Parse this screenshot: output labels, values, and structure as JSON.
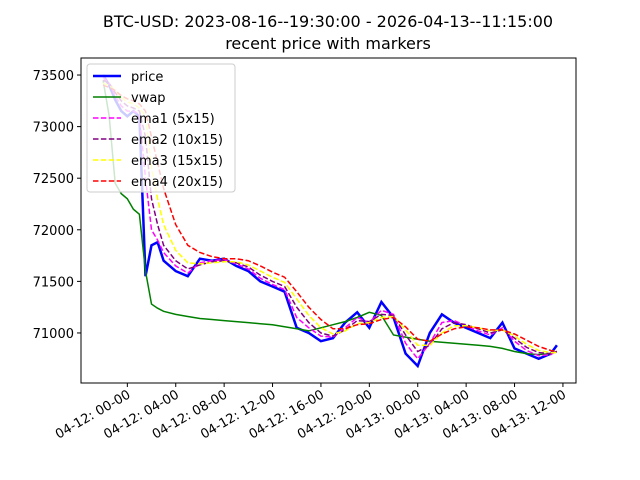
{
  "chart_data": {
    "type": "line",
    "title": "BTC-USD: 2023-08-16--19:30:00 - 2026-04-13--11:15:00",
    "subtitle": "recent price with markers",
    "x": [
      -2,
      -1.5,
      -1,
      -0.5,
      0,
      0.5,
      1,
      1.5,
      2,
      2.5,
      3,
      4,
      5,
      6,
      7,
      8,
      9,
      10,
      11,
      12,
      13,
      14,
      15,
      16,
      17,
      18,
      19,
      20,
      21,
      22,
      23,
      24,
      25,
      26,
      27,
      28,
      29,
      30,
      31,
      32,
      33,
      34,
      35,
      35.5
    ],
    "xlim": [
      -3.83,
      37.08
    ],
    "xticks": [
      {
        "value": 0,
        "label": "04-12: 00-00"
      },
      {
        "value": 4,
        "label": "04-12: 04-00"
      },
      {
        "value": 8,
        "label": "04-12: 08-00"
      },
      {
        "value": 12,
        "label": "04-12: 12-00"
      },
      {
        "value": 16,
        "label": "04-12: 16-00"
      },
      {
        "value": 20,
        "label": "04-12: 20-00"
      },
      {
        "value": 24,
        "label": "04-13: 00-00"
      },
      {
        "value": 28,
        "label": "04-13: 04-00"
      },
      {
        "value": 32,
        "label": "04-13: 08-00"
      },
      {
        "value": 36,
        "label": "04-13: 12-00"
      }
    ],
    "ylim": [
      70515,
      73665
    ],
    "yticks": [
      71000,
      71500,
      72000,
      72500,
      73000,
      73500
    ],
    "legend": "upper left",
    "series": [
      {
        "name": "price",
        "color": "#0000ff",
        "linewidth": 2.5,
        "style": "solid",
        "values": [
          73500,
          73400,
          73260,
          73150,
          73100,
          73150,
          73100,
          71550,
          71850,
          71880,
          71700,
          71600,
          71550,
          71720,
          71700,
          71720,
          71650,
          71600,
          71500,
          71450,
          71400,
          71050,
          71000,
          70920,
          70950,
          71100,
          71200,
          71050,
          71300,
          71150,
          70800,
          70680,
          71000,
          71180,
          71100,
          71050,
          71000,
          70950,
          71100,
          70850,
          70800,
          70750,
          70800,
          70880
        ]
      },
      {
        "name": "vwap",
        "color": "#008000",
        "linewidth": 1.5,
        "style": "solid",
        "values": [
          73450,
          73100,
          72450,
          72350,
          72300,
          72200,
          72150,
          71600,
          71280,
          71240,
          71210,
          71180,
          71160,
          71140,
          71130,
          71120,
          71110,
          71100,
          71090,
          71080,
          71060,
          71040,
          71020,
          71050,
          71080,
          71110,
          71150,
          71200,
          71170,
          70980,
          70960,
          70940,
          70920,
          70910,
          70900,
          70890,
          70880,
          70870,
          70850,
          70820,
          70800,
          70790,
          70800,
          70820
        ]
      },
      {
        "name": "ema1 (5x15)",
        "color": "#ff00ff",
        "linewidth": 1.5,
        "style": "dashed",
        "values": [
          73480,
          73420,
          73300,
          73200,
          73150,
          73150,
          73120,
          72500,
          72000,
          71900,
          71780,
          71650,
          71580,
          71680,
          71700,
          71710,
          71670,
          71620,
          71530,
          71470,
          71420,
          71150,
          71050,
          70970,
          70960,
          71050,
          71150,
          71100,
          71220,
          71180,
          70900,
          70750,
          70900,
          71100,
          71120,
          71070,
          71020,
          70980,
          71050,
          70920,
          70830,
          70780,
          70790,
          70830
        ]
      },
      {
        "name": "ema2 (10x15)",
        "color": "#800080",
        "linewidth": 1.5,
        "style": "dashed",
        "values": [
          73450,
          73420,
          73330,
          73250,
          73200,
          73180,
          73150,
          72900,
          72300,
          72050,
          71850,
          71700,
          71620,
          71660,
          71690,
          71700,
          71680,
          71640,
          71560,
          71500,
          71450,
          71250,
          71100,
          71000,
          70970,
          71030,
          71120,
          71110,
          71180,
          71170,
          70980,
          70820,
          70880,
          71040,
          71100,
          71080,
          71040,
          71000,
          71030,
          70950,
          70860,
          70810,
          70800,
          70820
        ]
      },
      {
        "name": "ema3 (15x15)",
        "color": "#ffff00",
        "linewidth": 1.5,
        "style": "dashed",
        "values": [
          73420,
          73400,
          73350,
          73280,
          73240,
          73220,
          73180,
          73100,
          72600,
          72300,
          72050,
          71800,
          71680,
          71670,
          71680,
          71690,
          71690,
          71660,
          71600,
          71540,
          71490,
          71330,
          71170,
          71050,
          70990,
          71020,
          71090,
          71100,
          71150,
          71160,
          71030,
          70880,
          70880,
          71000,
          71070,
          71070,
          71050,
          71020,
          71030,
          70970,
          70890,
          70830,
          70810,
          70810
        ]
      },
      {
        "name": "ema4 (20x15)",
        "color": "#ff0000",
        "linewidth": 1.5,
        "style": "dashed",
        "values": [
          73400,
          73380,
          73350,
          73300,
          73270,
          73250,
          73220,
          73150,
          72900,
          72650,
          72400,
          72050,
          71850,
          71780,
          71740,
          71720,
          71720,
          71700,
          71650,
          71590,
          71540,
          71400,
          71250,
          71130,
          71040,
          71040,
          71080,
          71090,
          71130,
          71150,
          71060,
          70940,
          70920,
          70990,
          71040,
          71060,
          71050,
          71030,
          71030,
          70990,
          70930,
          70870,
          70830,
          70820
        ]
      }
    ]
  }
}
